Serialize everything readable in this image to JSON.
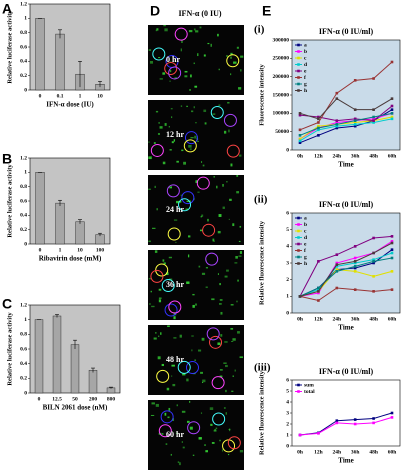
{
  "chart_data": [
    {
      "type": "bar",
      "panel": "A",
      "ylabel": "Relative luciferase activity",
      "xlabel": "IFN-α dose (IU)",
      "categories": [
        "0",
        "0.1",
        "1",
        "10"
      ],
      "values": [
        1.0,
        0.78,
        0.22,
        0.08
      ],
      "errors": [
        0,
        0.06,
        0.18,
        0.04
      ],
      "color": "#a6a6a6",
      "background": "#c4c4c4",
      "ylim": [
        0,
        1.2
      ],
      "yticks": [
        0,
        0.2,
        0.4,
        0.6,
        0.8,
        1,
        1.2
      ]
    },
    {
      "type": "bar",
      "panel": "B",
      "ylabel": "Relative luciferase activity",
      "xlabel": "Ribavirin dose (mM)",
      "categories": [
        "0",
        "1",
        "10",
        "100"
      ],
      "values": [
        1.0,
        0.57,
        0.31,
        0.13
      ],
      "errors": [
        0,
        0.04,
        0.03,
        0.02
      ],
      "color": "#a6a6a6",
      "background": "#c4c4c4",
      "ylim": [
        0,
        1.2
      ],
      "yticks": [
        0,
        0.2,
        0.4,
        0.6,
        0.8,
        1,
        1.2
      ]
    },
    {
      "type": "bar",
      "panel": "C",
      "ylabel": "Relative luciferase activity",
      "xlabel": "BILN 2061 dose (nM)",
      "categories": [
        "0",
        "12.5",
        "50",
        "200",
        "800"
      ],
      "values": [
        1.0,
        1.05,
        0.66,
        0.31,
        0.07
      ],
      "errors": [
        0,
        0.02,
        0.06,
        0.03,
        0.01
      ],
      "color": "#a6a6a6",
      "background": "#c4c4c4",
      "ylim": [
        0,
        1.2
      ],
      "yticks": [
        0,
        0.2,
        0.4,
        0.6,
        0.8,
        1,
        1.2
      ]
    },
    {
      "type": "line",
      "panel": "(i)",
      "title": "IFN-α (0 IU/ml)",
      "ylabel": "Fluorescence intensity",
      "xlabel": "Time",
      "categories": [
        "0h",
        "12h",
        "24h",
        "36h",
        "48h",
        "60h"
      ],
      "background": "#c9dbe9",
      "ylim": [
        0,
        300000
      ],
      "yticks": [
        0,
        50000,
        100000,
        150000,
        200000,
        250000,
        300000
      ],
      "series": [
        {
          "name": "a",
          "color": "#000080",
          "values": [
            20000,
            40000,
            60000,
            65000,
            80000,
            110000
          ]
        },
        {
          "name": "b",
          "color": "#ff00ff",
          "values": [
            30000,
            60000,
            75000,
            80000,
            85000,
            100000
          ]
        },
        {
          "name": "c",
          "color": "#e0e000",
          "values": [
            30000,
            65000,
            70000,
            75000,
            80000,
            90000
          ]
        },
        {
          "name": "d",
          "color": "#00cccc",
          "values": [
            25000,
            55000,
            65000,
            70000,
            75000,
            85000
          ]
        },
        {
          "name": "e",
          "color": "#800080",
          "values": [
            95000,
            90000,
            80000,
            85000,
            80000,
            120000
          ]
        },
        {
          "name": "f",
          "color": "#993333",
          "values": [
            55000,
            75000,
            155000,
            190000,
            195000,
            240000
          ]
        },
        {
          "name": "g",
          "color": "#008080",
          "values": [
            40000,
            60000,
            70000,
            80000,
            90000,
            100000
          ]
        },
        {
          "name": "h",
          "color": "#4a3a3a",
          "values": [
            100000,
            85000,
            140000,
            110000,
            110000,
            140000
          ]
        }
      ]
    },
    {
      "type": "line",
      "panel": "(ii)",
      "title": "IFN-α (0 IU/ml)",
      "ylabel": "Relative fluorescence intensity",
      "xlabel": "Time",
      "categories": [
        "0h",
        "12h",
        "24h",
        "36h",
        "48h",
        "60h"
      ],
      "background": "#c9dbe9",
      "ylim": [
        0,
        6
      ],
      "yticks": [
        0,
        1,
        2,
        3,
        4,
        5,
        6
      ],
      "series": [
        {
          "name": "a",
          "color": "#000080",
          "values": [
            1,
            1.5,
            2.6,
            2.7,
            3.0,
            3.8
          ]
        },
        {
          "name": "b",
          "color": "#ff00ff",
          "values": [
            1,
            1.2,
            3.0,
            3.3,
            3.6,
            4.3
          ]
        },
        {
          "name": "c",
          "color": "#e0e000",
          "values": [
            1,
            1.3,
            2.6,
            2.5,
            2.2,
            2.5
          ]
        },
        {
          "name": "d",
          "color": "#00cccc",
          "values": [
            1,
            1.4,
            2.8,
            3.0,
            3.2,
            3.6
          ]
        },
        {
          "name": "e",
          "color": "#800080",
          "values": [
            1,
            3.1,
            3.5,
            4.0,
            4.5,
            4.6
          ]
        },
        {
          "name": "f",
          "color": "#993333",
          "values": [
            1,
            0.75,
            1.5,
            1.4,
            1.3,
            1.4
          ]
        },
        {
          "name": "g",
          "color": "#008080",
          "values": [
            1,
            1.5,
            2.5,
            2.8,
            3.1,
            3.3
          ]
        },
        {
          "name": "h",
          "color": "#4a3a3a",
          "values": [
            1,
            1.3,
            2.9,
            3.1,
            3.6,
            4.2
          ]
        }
      ]
    },
    {
      "type": "line",
      "panel": "(iii)",
      "title": "IFN-α (0 IU/ml)",
      "ylabel": "Relative fluorescence intensity",
      "xlabel": "Time",
      "categories": [
        "0h",
        "12h",
        "24h",
        "36h",
        "48h",
        "60h"
      ],
      "background": "#ffffff",
      "ylim": [
        0,
        6
      ],
      "yticks": [
        0,
        1,
        2,
        3,
        4,
        5,
        6
      ],
      "series": [
        {
          "name": "sum",
          "color": "#000080",
          "values": [
            1,
            1.2,
            2.3,
            2.4,
            2.5,
            3.0
          ]
        },
        {
          "name": "total",
          "color": "#ff00ff",
          "values": [
            1,
            1.15,
            2.1,
            2.0,
            2.1,
            2.6
          ]
        }
      ]
    }
  ],
  "microscopy": {
    "panel": "D",
    "title": "IFN-α (0 IU)",
    "timepoints": [
      "0 hr",
      "12 hr",
      "24 hr",
      "36 hr",
      "48 hr",
      "60 hr"
    ]
  },
  "panel_e": {
    "label": "E"
  }
}
